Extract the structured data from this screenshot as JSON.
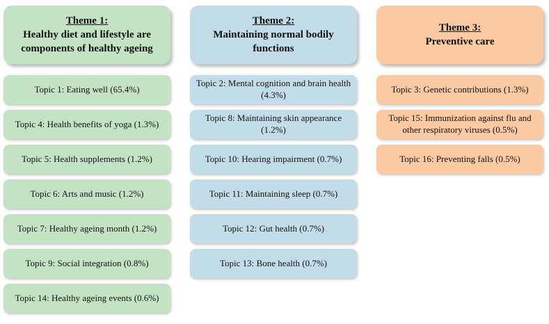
{
  "figure": {
    "description": "Three-theme topic map with topic prevalence percentages"
  },
  "themes": [
    {
      "title": "Theme 1:",
      "subtitle": "Healthy diet and lifestyle are components of healthy ageing",
      "color": "#c4e3c5",
      "topics": [
        "Topic 1: Eating well (65.4%)",
        "Topic 4: Health benefits of yoga (1.3%)",
        "Topic 5: Health supplements (1.2%)",
        "Topic 6: Arts and music (1.2%)",
        "Topic 7: Healthy ageing month (1.2%)",
        "Topic 9: Social integration (0.8%)",
        "Topic 14: Healthy ageing events (0.6%)"
      ]
    },
    {
      "title": "Theme 2:",
      "subtitle": "Maintaining normal bodily functions",
      "color": "#c3dde8",
      "topics": [
        "Topic 2: Mental cognition and brain health (4.3%)",
        "Topic 8: Maintaining skin appearance (1.2%)",
        "Topic 10: Hearing impairment (0.7%)",
        "Topic 11: Maintaining sleep (0.7%)",
        "Topic 12: Gut health (0.7%)",
        "Topic 13: Bone health (0.7%)"
      ]
    },
    {
      "title": "Theme 3:",
      "subtitle": "Preventive care",
      "color": "#fbc9a2",
      "topics": [
        "Topic 3: Genetic contributions (1.3%)",
        "Topic 15: Immunization against flu and other respiratory viruses (0.5%)",
        "Topic 16: Preventing falls (0.5%)"
      ]
    }
  ]
}
